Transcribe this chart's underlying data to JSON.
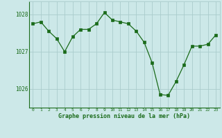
{
  "x": [
    0,
    1,
    2,
    3,
    4,
    5,
    6,
    7,
    8,
    9,
    10,
    11,
    12,
    13,
    14,
    15,
    16,
    17,
    18,
    19,
    20,
    21,
    22,
    23
  ],
  "y": [
    1027.75,
    1027.8,
    1027.55,
    1027.35,
    1027.0,
    1027.4,
    1027.6,
    1027.6,
    1027.75,
    1028.05,
    1027.85,
    1027.8,
    1027.75,
    1027.55,
    1027.25,
    1026.7,
    1025.85,
    1025.83,
    1026.2,
    1026.65,
    1027.15,
    1027.15,
    1027.2,
    1027.45
  ],
  "line_color": "#1a6b1a",
  "marker_color": "#1a6b1a",
  "bg_color": "#cce8e8",
  "grid_color": "#aacccc",
  "axis_color": "#1a6b1a",
  "tick_color": "#1a6b1a",
  "xlabel": "Graphe pression niveau de la mer (hPa)",
  "ylim": [
    1025.5,
    1028.35
  ],
  "yticks": [
    1026,
    1027,
    1028
  ],
  "xticks": [
    0,
    1,
    2,
    3,
    4,
    5,
    6,
    7,
    8,
    9,
    10,
    11,
    12,
    13,
    14,
    15,
    16,
    17,
    18,
    19,
    20,
    21,
    22,
    23
  ],
  "figsize": [
    3.2,
    2.0
  ],
  "dpi": 100
}
